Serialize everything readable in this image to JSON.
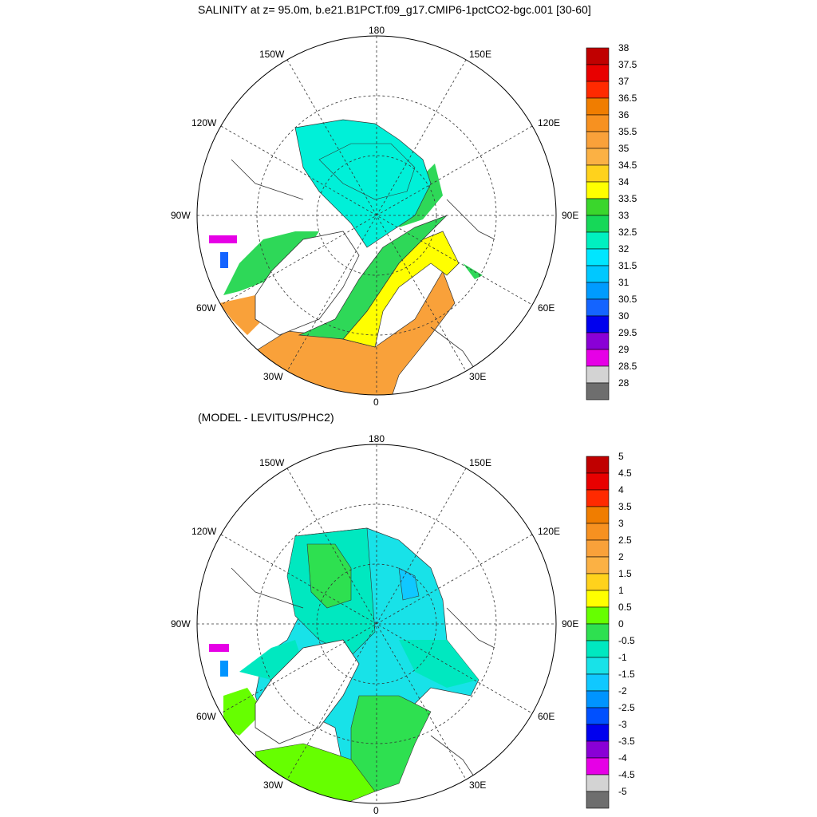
{
  "panel1": {
    "title": "SALINITY at z=  95.0m, b.e21.B1PCT.f09_g17.CMIP6-1pctCO2-bgc.001 [30-60]",
    "colorbar_labels": [
      "38",
      "37.5",
      "37",
      "36.5",
      "36",
      "35.5",
      "35",
      "34.5",
      "34",
      "33.5",
      "33",
      "32.5",
      "32",
      "31.5",
      "31",
      "30.5",
      "30",
      "29.5",
      "29",
      "28.5",
      "28"
    ],
    "colorbar_colors": [
      "#c00000",
      "#e80000",
      "#ff2a00",
      "#f07d00",
      "#f79120",
      "#f9a13a",
      "#fbb144",
      "#ffd21c",
      "#ffff00",
      "#3ad62c",
      "#16d858",
      "#00f0c0",
      "#00e6ff",
      "#00c8ff",
      "#009bff",
      "#1464ff",
      "#0000ee",
      "#8a00d6",
      "#e600e6",
      "#d3d3d3",
      "#6e6e6e"
    ]
  },
  "panel2": {
    "title": "(MODEL - LEVITUS/PHC2)",
    "colorbar_labels": [
      "5",
      "4.5",
      "4",
      "3.5",
      "3",
      "2.5",
      "2",
      "1.5",
      "1",
      "0.5",
      "0",
      "-0.5",
      "-1",
      "-1.5",
      "-2",
      "-2.5",
      "-3",
      "-3.5",
      "-4",
      "-4.5",
      "-5"
    ],
    "colorbar_colors": [
      "#c00000",
      "#e80000",
      "#ff2a00",
      "#f07d00",
      "#f79120",
      "#f9a13a",
      "#fbb144",
      "#ffd21c",
      "#ffff00",
      "#66ff00",
      "#2ee050",
      "#00e8c0",
      "#18e2e8",
      "#10c8ff",
      "#0094ff",
      "#0050ff",
      "#0000ee",
      "#8a00d6",
      "#e600e6",
      "#d3d3d3",
      "#6e6e6e"
    ]
  },
  "map_labels": {
    "top": "180",
    "bottom": "0",
    "left": "90W",
    "right": "90E",
    "lon150w": "150W",
    "lon150e": "150E",
    "lon120w": "120W",
    "lon120e": "120E",
    "lon60w": "60W",
    "lon60e": "60E",
    "lon30w": "30W",
    "lon30e": "30E"
  },
  "colors": {
    "ocean_panel1_main": "#00f0d8",
    "ocean_panel1_green": "#2ed858",
    "ocean_panel1_yellow": "#ffff00",
    "ocean_panel1_orange": "#f9a13a",
    "ocean_panel2_main": "#18e2e8",
    "ocean_panel2_green": "#2ee050",
    "ocean_panel2_lime": "#66ff00",
    "ocean_panel2_teal": "#00e8c0"
  }
}
